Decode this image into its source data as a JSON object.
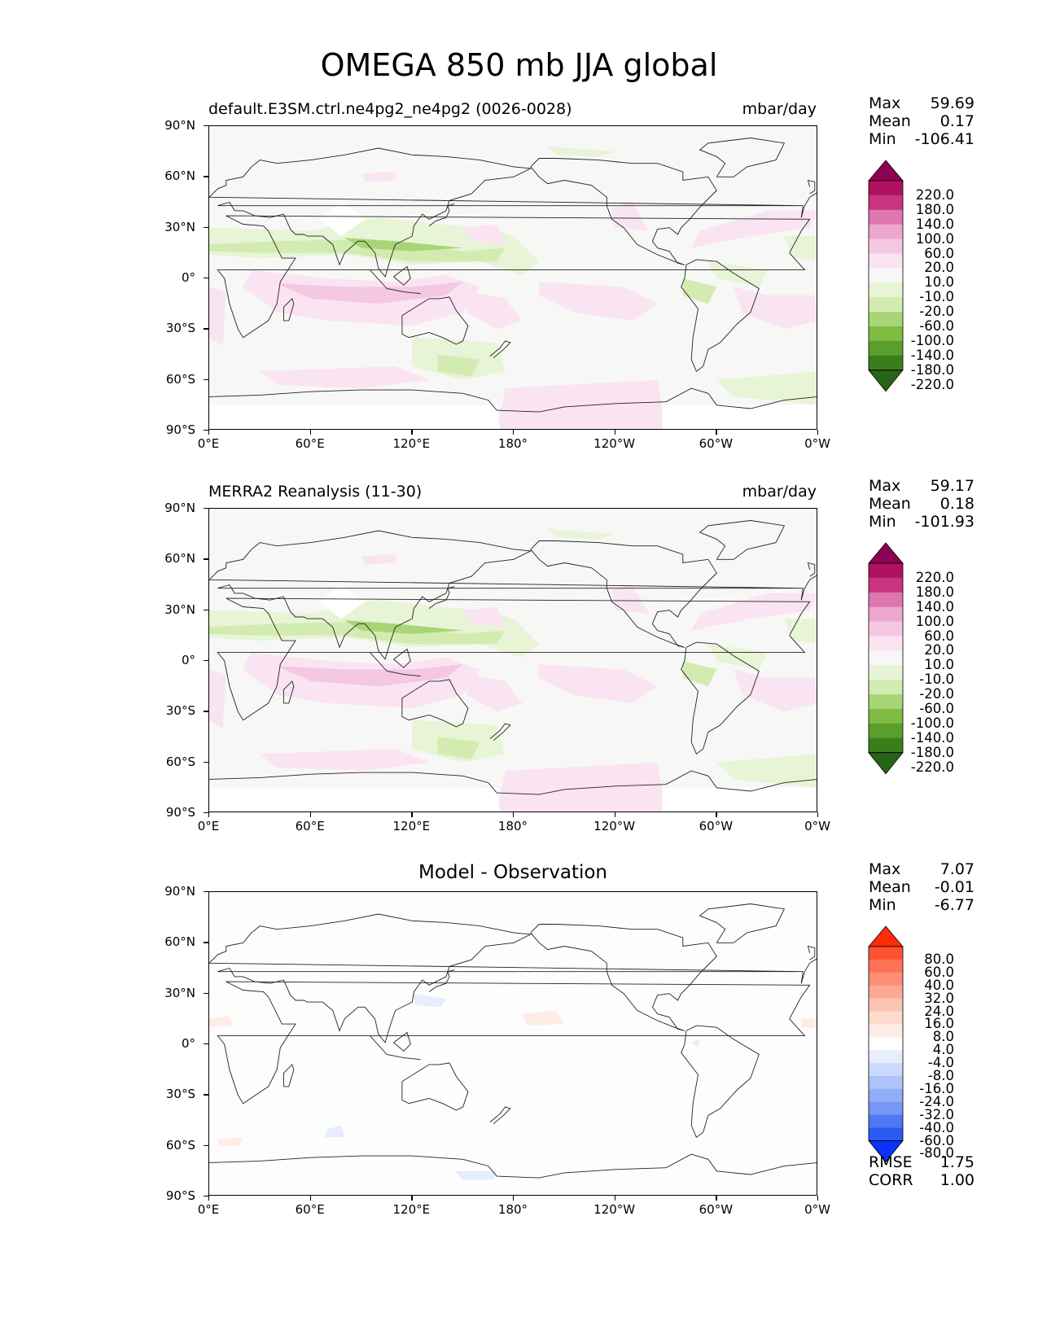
{
  "figure": {
    "title": "OMEGA 850 mb JJA global"
  },
  "axes": {
    "lat_ticks": [
      "90°N",
      "60°N",
      "30°N",
      "0°",
      "30°S",
      "60°S",
      "90°S"
    ],
    "lon_ticks": [
      "0°E",
      "60°E",
      "120°E",
      "180°",
      "120°W",
      "60°W",
      "0°W"
    ]
  },
  "panels": [
    {
      "title_left": "default.E3SM.ctrl.ne4pg2_ne4pg2 (0026-0028)",
      "title_right": "mbar/day",
      "title_center": "",
      "stats": {
        "max_label": "Max",
        "max": "59.69",
        "mean_label": "Mean",
        "mean": "0.17",
        "min_label": "Min",
        "min": "-106.41"
      },
      "colorbar": "pg"
    },
    {
      "title_left": "MERRA2 Reanalysis (11-30)",
      "title_right": "mbar/day",
      "title_center": "",
      "stats": {
        "max_label": "Max",
        "max": "59.17",
        "mean_label": "Mean",
        "mean": "0.18",
        "min_label": "Min",
        "min": "-101.93"
      },
      "colorbar": "pg"
    },
    {
      "title_left": "",
      "title_right": "",
      "title_center": "Model - Observation",
      "stats": {
        "max_label": "Max",
        "max": "7.07",
        "mean_label": "Mean",
        "mean": "-0.01",
        "min_label": "Min",
        "min": "-6.77"
      },
      "colorbar": "diff",
      "metrics": {
        "rmse_label": "RMSE",
        "rmse": "1.75",
        "corr_label": "CORR",
        "corr": "1.00"
      }
    }
  ],
  "colorbars": {
    "pg": {
      "labels": [
        "220.0",
        "180.0",
        "140.0",
        "100.0",
        "60.0",
        "20.0",
        "10.0",
        "-10.0",
        "-20.0",
        "-60.0",
        "-100.0",
        "-140.0",
        "-180.0",
        "-220.0"
      ],
      "colors": [
        "#8e0152",
        "#b0125f",
        "#c9347f",
        "#de77ae",
        "#eda6cc",
        "#f4c7e2",
        "#fae4f1",
        "#f7f7f7",
        "#e8f4d6",
        "#d2ebb1",
        "#a8d676",
        "#7fbc41",
        "#5a9e2b",
        "#3c7d1b",
        "#276419"
      ]
    },
    "diff": {
      "labels": [
        "80.0",
        "60.0",
        "40.0",
        "32.0",
        "24.0",
        "16.0",
        "8.0",
        "4.0",
        "-4.0",
        "-8.0",
        "-16.0",
        "-24.0",
        "-32.0",
        "-40.0",
        "-60.0",
        "-80.0"
      ],
      "colors": [
        "#ff2a0a",
        "#ff5233",
        "#fd7257",
        "#fc8f76",
        "#fba994",
        "#fcc3b1",
        "#fddbcd",
        "#feede6",
        "#ffffff",
        "#e6edfd",
        "#cad9fc",
        "#aec3fa",
        "#92adf8",
        "#7697f6",
        "#4f78f5",
        "#2a5af4",
        "#0a32ff"
      ]
    }
  },
  "chart_data": [
    {
      "type": "heatmap",
      "title": "OMEGA 850 mb JJA global",
      "subtitle": "default.E3SM.ctrl.ne4pg2_ne4pg2 (0026-0028)",
      "units": "mbar/day",
      "x_ticks": [
        "0°E",
        "60°E",
        "120°E",
        "180°",
        "120°W",
        "60°W",
        "0°W"
      ],
      "y_ticks": [
        "90°N",
        "60°N",
        "30°N",
        "0°",
        "30°S",
        "60°S",
        "90°S"
      ],
      "xlim": [
        0,
        360
      ],
      "ylim": [
        -90,
        90
      ],
      "max": 59.69,
      "mean": 0.17,
      "min": -106.41
    },
    {
      "type": "heatmap",
      "subtitle": "MERRA2 Reanalysis (11-30)",
      "units": "mbar/day",
      "x_ticks": [
        "0°E",
        "60°E",
        "120°E",
        "180°",
        "120°W",
        "60°W",
        "0°W"
      ],
      "y_ticks": [
        "90°N",
        "60°N",
        "30°N",
        "0°",
        "30°S",
        "60°S",
        "90°S"
      ],
      "xlim": [
        0,
        360
      ],
      "ylim": [
        -90,
        90
      ],
      "max": 59.17,
      "mean": 0.18,
      "min": -101.93
    },
    {
      "type": "heatmap",
      "subtitle": "Model - Observation",
      "x_ticks": [
        "0°E",
        "60°E",
        "120°E",
        "180°",
        "120°W",
        "60°W",
        "0°W"
      ],
      "y_ticks": [
        "90°N",
        "60°N",
        "30°N",
        "0°",
        "30°S",
        "60°S",
        "90°S"
      ],
      "xlim": [
        0,
        360
      ],
      "ylim": [
        -90,
        90
      ],
      "max": 7.07,
      "mean": -0.01,
      "min": -6.77,
      "rmse": 1.75,
      "corr": 1.0
    }
  ]
}
